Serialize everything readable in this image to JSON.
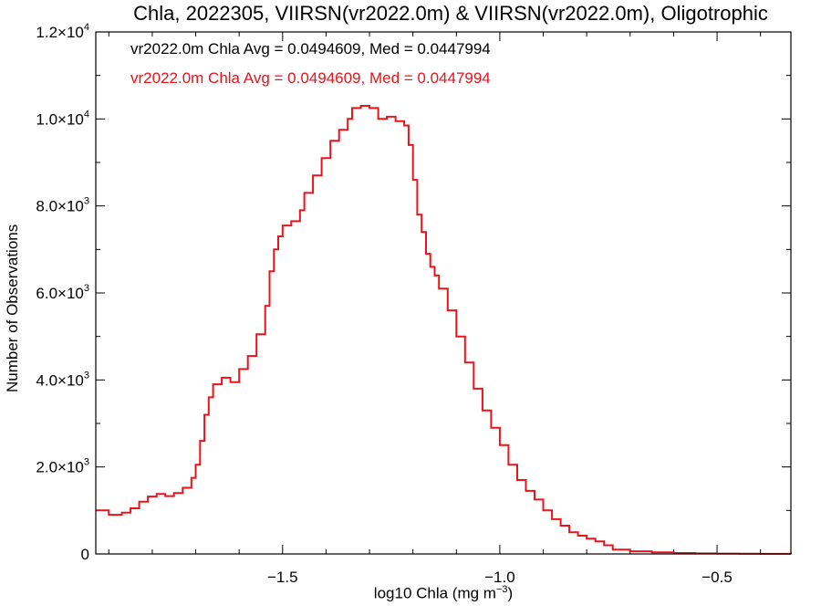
{
  "chart_data": {
    "type": "histogram",
    "title": "Chla, 2022305, VIIRSN(vr2022.0m) & VIIRSN(vr2022.0m), Oligotrophic",
    "xlabel_main": "log10 Chla (mg m",
    "xlabel_exp": "−3",
    "xlabel_close": ")",
    "ylabel": "Number of Observations",
    "xlim": [
      -1.93,
      -0.33
    ],
    "ylim": [
      0,
      12000
    ],
    "x_ticks": [
      {
        "value": -1.5,
        "label": "−1.5"
      },
      {
        "value": -1.0,
        "label": "−1.0"
      },
      {
        "value": -0.5,
        "label": "−0.5"
      }
    ],
    "y_ticks": [
      {
        "value": 0,
        "mant": "0",
        "exp": ""
      },
      {
        "value": 2000,
        "mant": "2.0×10",
        "exp": "3"
      },
      {
        "value": 4000,
        "mant": "4.0×10",
        "exp": "3"
      },
      {
        "value": 6000,
        "mant": "6.0×10",
        "exp": "3"
      },
      {
        "value": 8000,
        "mant": "8.0×10",
        "exp": "3"
      },
      {
        "value": 10000,
        "mant": "1.0×10",
        "exp": "4"
      },
      {
        "value": 12000,
        "mant": "1.2×10",
        "exp": "4"
      }
    ],
    "annotations": [
      {
        "text": "vr2022.0m Chla Avg = 0.0494609, Med = 0.0447994",
        "color": "#000000"
      },
      {
        "text": "vr2022.0m Chla Avg = 0.0494609, Med = 0.0447994",
        "color": "#e8141b"
      }
    ],
    "series": [
      {
        "color": "#e8141b",
        "points": [
          [
            -1.93,
            1000
          ],
          [
            -1.9,
            900
          ],
          [
            -1.87,
            950
          ],
          [
            -1.85,
            1050
          ],
          [
            -1.83,
            1200
          ],
          [
            -1.81,
            1320
          ],
          [
            -1.79,
            1380
          ],
          [
            -1.77,
            1330
          ],
          [
            -1.75,
            1400
          ],
          [
            -1.73,
            1520
          ],
          [
            -1.71,
            1750
          ],
          [
            -1.7,
            2050
          ],
          [
            -1.69,
            2600
          ],
          [
            -1.68,
            3200
          ],
          [
            -1.67,
            3600
          ],
          [
            -1.66,
            3900
          ],
          [
            -1.64,
            4050
          ],
          [
            -1.62,
            3950
          ],
          [
            -1.6,
            4250
          ],
          [
            -1.58,
            4550
          ],
          [
            -1.56,
            5050
          ],
          [
            -1.54,
            5700
          ],
          [
            -1.53,
            6500
          ],
          [
            -1.52,
            7000
          ],
          [
            -1.51,
            7300
          ],
          [
            -1.5,
            7550
          ],
          [
            -1.48,
            7650
          ],
          [
            -1.46,
            7900
          ],
          [
            -1.45,
            8300
          ],
          [
            -1.43,
            8700
          ],
          [
            -1.41,
            9100
          ],
          [
            -1.39,
            9500
          ],
          [
            -1.37,
            9750
          ],
          [
            -1.35,
            10000
          ],
          [
            -1.34,
            10250
          ],
          [
            -1.32,
            10300
          ],
          [
            -1.3,
            10250
          ],
          [
            -1.28,
            10000
          ],
          [
            -1.26,
            10050
          ],
          [
            -1.24,
            9950
          ],
          [
            -1.22,
            9850
          ],
          [
            -1.21,
            9400
          ],
          [
            -1.2,
            8600
          ],
          [
            -1.19,
            7800
          ],
          [
            -1.18,
            7400
          ],
          [
            -1.17,
            6900
          ],
          [
            -1.16,
            6600
          ],
          [
            -1.15,
            6400
          ],
          [
            -1.14,
            6100
          ],
          [
            -1.12,
            5600
          ],
          [
            -1.1,
            5000
          ],
          [
            -1.08,
            4400
          ],
          [
            -1.06,
            3800
          ],
          [
            -1.04,
            3300
          ],
          [
            -1.02,
            2900
          ],
          [
            -1.0,
            2500
          ],
          [
            -0.98,
            2050
          ],
          [
            -0.96,
            1700
          ],
          [
            -0.94,
            1450
          ],
          [
            -0.92,
            1250
          ],
          [
            -0.9,
            1000
          ],
          [
            -0.88,
            800
          ],
          [
            -0.86,
            650
          ],
          [
            -0.84,
            500
          ],
          [
            -0.82,
            420
          ],
          [
            -0.8,
            350
          ],
          [
            -0.78,
            290
          ],
          [
            -0.76,
            200
          ],
          [
            -0.74,
            100
          ],
          [
            -0.7,
            60
          ],
          [
            -0.65,
            35
          ],
          [
            -0.6,
            20
          ],
          [
            -0.55,
            12
          ],
          [
            -0.5,
            8
          ],
          [
            -0.45,
            5
          ],
          [
            -0.4,
            3
          ],
          [
            -0.35,
            2
          ],
          [
            -0.33,
            1
          ]
        ]
      }
    ]
  }
}
